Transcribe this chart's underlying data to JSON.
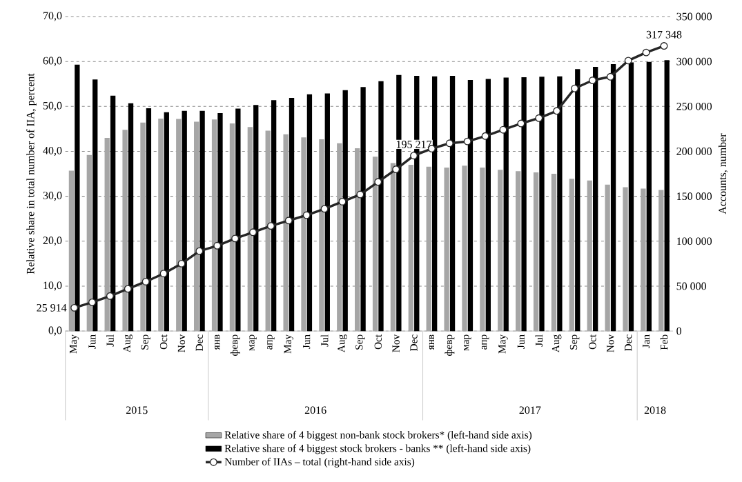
{
  "chart_data": {
    "type": "bar",
    "ylabel": "Relative share in total number of IIA, percent",
    "y2label": "Accounts, number",
    "categories": [
      "May",
      "Jun",
      "Jul",
      "Aug",
      "Sep",
      "Oct",
      "Nov",
      "Dec",
      "янв",
      "февр",
      "мар",
      "апр",
      "May",
      "Jun",
      "Jul",
      "Aug",
      "Sep",
      "Oct",
      "Nov",
      "Dec",
      "янв",
      "февр",
      "мар",
      "апр",
      "May",
      "Jun",
      "Jul",
      "Aug",
      "Sep",
      "Oct",
      "Nov",
      "Dec",
      "Jan",
      "Feb"
    ],
    "annotations": [
      "2015",
      "2016",
      "2017",
      "2018"
    ],
    "series": [
      {
        "name": "Relative share of 4 biggest non-bank stock brokers* (left-hand side axis)",
        "color": "#a6a6a6",
        "values": [
          35.7,
          39.2,
          43.0,
          44.8,
          46.4,
          47.3,
          47.2,
          46.6,
          47.1,
          46.2,
          45.4,
          44.6,
          43.8,
          43.1,
          42.7,
          41.8,
          40.7,
          38.8,
          37.4,
          37.0,
          36.6,
          36.4,
          36.8,
          36.4,
          35.9,
          35.6,
          35.3,
          35.0,
          33.9,
          33.5,
          32.6,
          32.0,
          31.7,
          31.4
        ]
      },
      {
        "name": "Relative share of 4 biggest stock brokers - banks ** (left-hand side axis)",
        "color": "#000000",
        "values": [
          59.3,
          56.0,
          52.4,
          50.7,
          49.6,
          48.7,
          49.0,
          49.0,
          48.5,
          49.5,
          50.3,
          51.4,
          51.9,
          52.7,
          52.9,
          53.6,
          54.3,
          55.6,
          57.0,
          56.8,
          56.7,
          56.8,
          55.9,
          56.1,
          56.4,
          56.5,
          56.6,
          56.7,
          58.3,
          58.8,
          59.4,
          59.8,
          59.9,
          60.3
        ]
      },
      {
        "name": "Number of IIAs – total (right-hand side axis)",
        "type": "line",
        "axis": "y2",
        "color": "#262626",
        "marker": "circle",
        "values": [
          25914,
          32000,
          39000,
          47000,
          55000,
          64000,
          75000,
          89000,
          95000,
          103000,
          110000,
          117000,
          123000,
          129000,
          136000,
          144000,
          152000,
          166000,
          180000,
          195217,
          203000,
          209000,
          211000,
          217000,
          224000,
          231000,
          237000,
          245000,
          270000,
          279000,
          283000,
          301000,
          310000,
          317348
        ],
        "value_labels": [
          "25 914",
          null,
          null,
          null,
          null,
          null,
          null,
          null,
          null,
          null,
          null,
          null,
          null,
          null,
          null,
          null,
          null,
          null,
          null,
          "195 217",
          null,
          null,
          null,
          null,
          null,
          null,
          null,
          null,
          null,
          null,
          null,
          null,
          null,
          "317 348"
        ]
      }
    ],
    "ylim": [
      0,
      70
    ],
    "yticks": [
      {
        "value": 0,
        "label": "0,0"
      },
      {
        "value": 10,
        "label": "10,0"
      },
      {
        "value": 20,
        "label": "20,0"
      },
      {
        "value": 30,
        "label": "30,0"
      },
      {
        "value": 40,
        "label": "40,0"
      },
      {
        "value": 50,
        "label": "50,0"
      },
      {
        "value": 60,
        "label": "60,0"
      },
      {
        "value": 70,
        "label": "70,0"
      }
    ],
    "y2lim": [
      0,
      350000
    ],
    "y2ticks": [
      0,
      {
        "value": 50000,
        "label": "50 000"
      },
      {
        "value": 100000,
        "label": "100 000"
      },
      {
        "value": 150000,
        "label": "150 000"
      },
      {
        "value": 200000,
        "label": "200 000"
      },
      {
        "value": 250000,
        "label": "250 000"
      },
      {
        "value": 300000,
        "label": "300 000"
      },
      {
        "value": 350000,
        "label": "350 000"
      }
    ],
    "grid": "y",
    "legend": "bottom"
  }
}
